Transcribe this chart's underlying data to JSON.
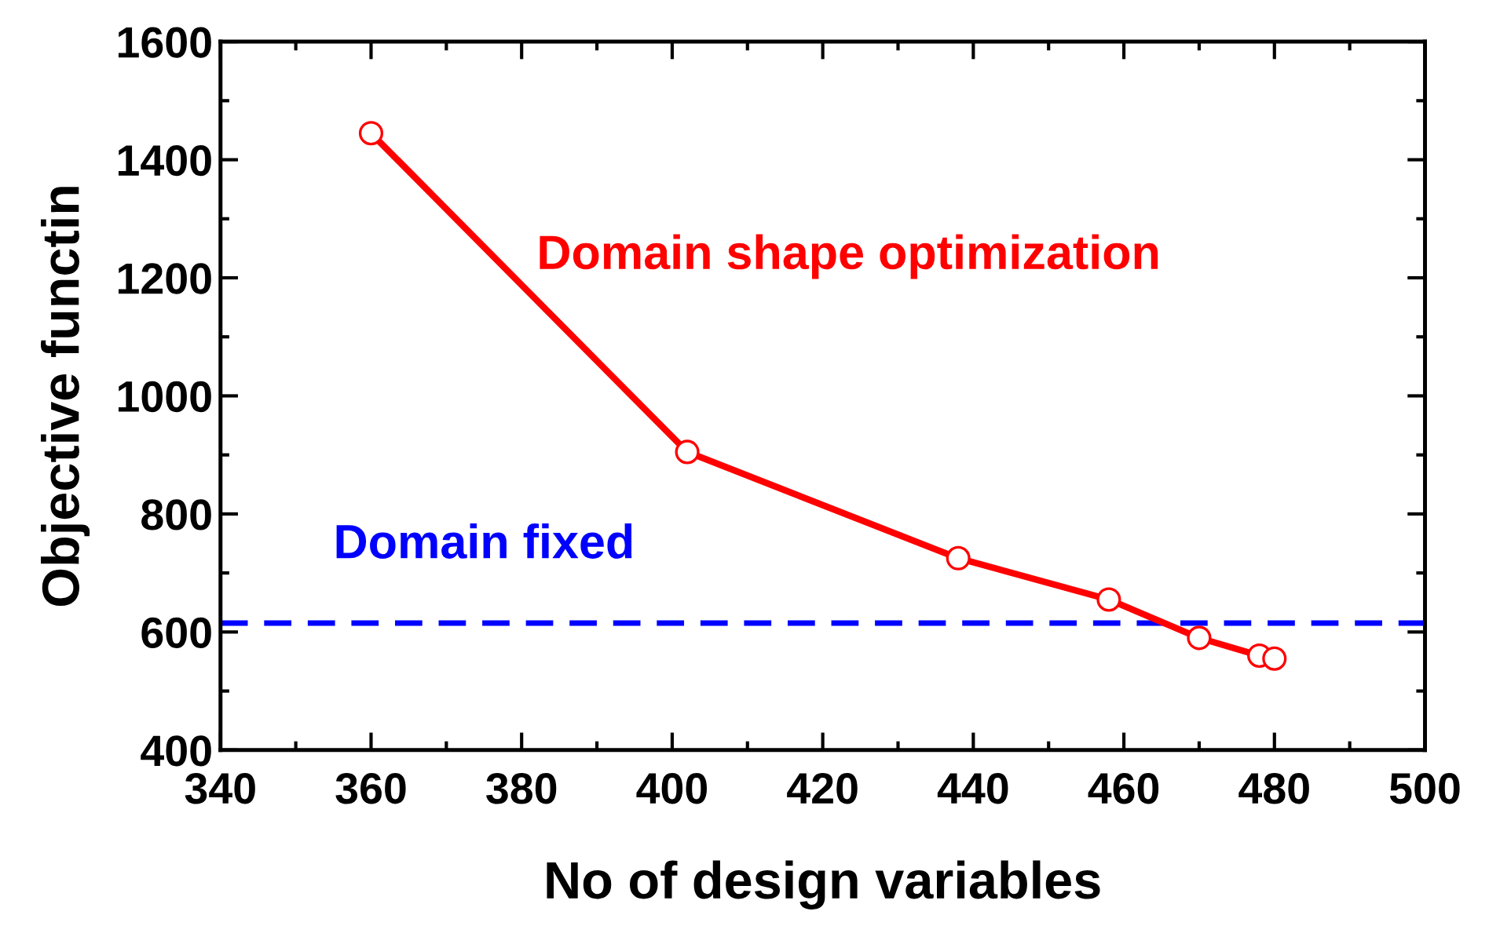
{
  "chart_data": {
    "type": "line",
    "xlabel": "No of design variables",
    "ylabel": "Objective functin",
    "x": [
      360,
      402,
      438,
      458,
      470,
      478,
      480
    ],
    "series": [
      {
        "name": "Domain shape optimization",
        "color": "#ff0000",
        "values": [
          1445,
          905,
          725,
          655,
          590,
          560,
          555
        ]
      }
    ],
    "marker": "circle",
    "line_style": "solid",
    "legend": false,
    "grid": false,
    "xlim": [
      340,
      500
    ],
    "xticks": [
      340,
      360,
      380,
      400,
      420,
      440,
      460,
      480,
      500
    ],
    "ylim": [
      400,
      1600
    ],
    "yticks": [
      400,
      600,
      800,
      1000,
      1200,
      1400,
      1600
    ],
    "ref_lines": [
      {
        "axis": "y",
        "value": 615,
        "label": "Domain fixed",
        "color": "#0000ff",
        "line_style": "dashed"
      }
    ]
  }
}
